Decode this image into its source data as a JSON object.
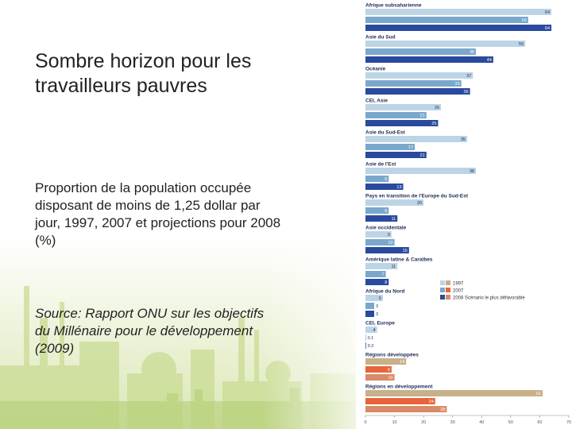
{
  "slide": {
    "title": "Sombre horizon pour les travailleurs pauvres",
    "subtitle": "Proportion de la population occupée disposant de moins de 1,25 dollar par jour, 1997, 2007 et projections pour 2008 (%)",
    "source": "Source: Rapport ONU sur les objectifs du Millénaire pour le développement (2009)"
  },
  "colors": {
    "blue_1997": "#bcd4e6",
    "blue_2007": "#7aa7cc",
    "blue_2008": "#2a4a9e",
    "tan_1997": "#c7b08a",
    "orange_2007": "#e8643a",
    "orange_2008": "#d98a66",
    "bg_green": "#c5d88a"
  },
  "chart_data": {
    "type": "bar",
    "orientation": "horizontal",
    "xlim": [
      0,
      70
    ],
    "xticks": [
      "0",
      "10",
      "20",
      "30",
      "40",
      "50",
      "60",
      "70"
    ],
    "legend": {
      "placement": "right",
      "entries": [
        "1997",
        "2007",
        "2008 Scénario le plus défavorable"
      ]
    },
    "groups": [
      {
        "name": "Afrique subsaharienne",
        "values": [
          64,
          56,
          64
        ],
        "labels": [
          "64",
          "56",
          "64"
        ],
        "palette": "blue"
      },
      {
        "name": "Asie du Sud",
        "values": [
          55,
          38,
          44
        ],
        "labels": [
          "55",
          "38",
          "44"
        ],
        "palette": "blue"
      },
      {
        "name": "Océanie",
        "values": [
          37,
          33,
          36
        ],
        "labels": [
          "37",
          "33",
          "36"
        ],
        "palette": "blue"
      },
      {
        "name": "CEI, Asie",
        "values": [
          26,
          21,
          25
        ],
        "labels": [
          "26",
          "21",
          "25"
        ],
        "palette": "blue"
      },
      {
        "name": "Asie du Sud-Est",
        "values": [
          35,
          17,
          21
        ],
        "labels": [
          "35",
          "17",
          "21"
        ],
        "palette": "blue"
      },
      {
        "name": "Asie de l'Est",
        "values": [
          38,
          8,
          13
        ],
        "labels": [
          "38",
          "8",
          "13"
        ],
        "palette": "blue"
      },
      {
        "name": "Pays en transition de l'Europe du Sud-Est",
        "values": [
          20,
          8,
          11
        ],
        "labels": [
          "20",
          "8",
          "11"
        ],
        "palette": "blue"
      },
      {
        "name": "Asie occidentale",
        "values": [
          9,
          10,
          15
        ],
        "labels": [
          "9",
          "10",
          "15"
        ],
        "palette": "blue"
      },
      {
        "name": "Amérique latine & Caraïbes",
        "values": [
          11,
          7,
          8
        ],
        "labels": [
          "11",
          "7",
          "8"
        ],
        "palette": "blue"
      },
      {
        "name": "Afrique du Nord",
        "values": [
          6,
          3,
          3
        ],
        "labels": [
          "6",
          "3",
          "3"
        ],
        "palette": "blue"
      },
      {
        "name": "CEI, Europe",
        "values": [
          4,
          0.1,
          0.2
        ],
        "labels": [
          "4",
          "0.1",
          "0.2"
        ],
        "palette": "blue"
      },
      {
        "name": "Régions développées",
        "values": [
          14,
          9,
          10
        ],
        "labels": [
          "14",
          "9",
          "10"
        ],
        "palette": "orange"
      },
      {
        "name": "Régions en développement",
        "values": [
          61,
          24,
          28
        ],
        "labels": [
          "61",
          "24",
          "28"
        ],
        "palette": "orange"
      }
    ]
  }
}
